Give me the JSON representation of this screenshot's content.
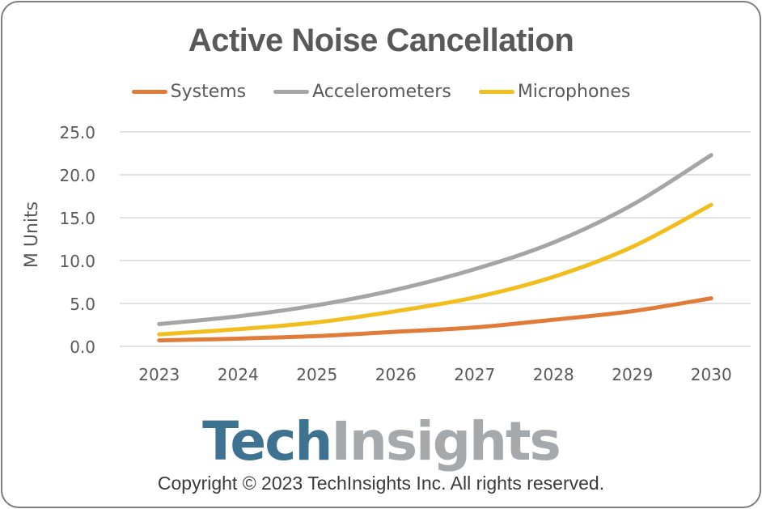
{
  "chart_data": {
    "type": "line",
    "title": "Active Noise Cancellation",
    "xlabel": "",
    "ylabel": "M Units",
    "categories": [
      "2023",
      "2024",
      "2025",
      "2026",
      "2027",
      "2028",
      "2029",
      "2030"
    ],
    "ylim": [
      0,
      25
    ],
    "yticks": [
      "0.0",
      "5.0",
      "10.0",
      "15.0",
      "20.0",
      "25.0"
    ],
    "ytick_values": [
      0,
      5,
      10,
      15,
      20,
      25
    ],
    "grid": true,
    "legend_position": "top",
    "series": [
      {
        "name": "Systems",
        "color": "#e07b39",
        "values": [
          0.7,
          0.9,
          1.2,
          1.7,
          2.2,
          3.1,
          4.1,
          5.6
        ]
      },
      {
        "name": "Accelerometers",
        "color": "#a5a5a5",
        "values": [
          2.6,
          3.5,
          4.8,
          6.6,
          9.0,
          12.1,
          16.5,
          22.3
        ]
      },
      {
        "name": "Microphones",
        "color": "#f2be1d",
        "values": [
          1.4,
          2.0,
          2.8,
          4.1,
          5.7,
          8.1,
          11.6,
          16.5
        ]
      }
    ]
  },
  "branding": {
    "logo_part1": "Tech",
    "logo_part2": "Insights",
    "copyright": "Copyright © 2023 TechInsights Inc.  All rights reserved."
  }
}
